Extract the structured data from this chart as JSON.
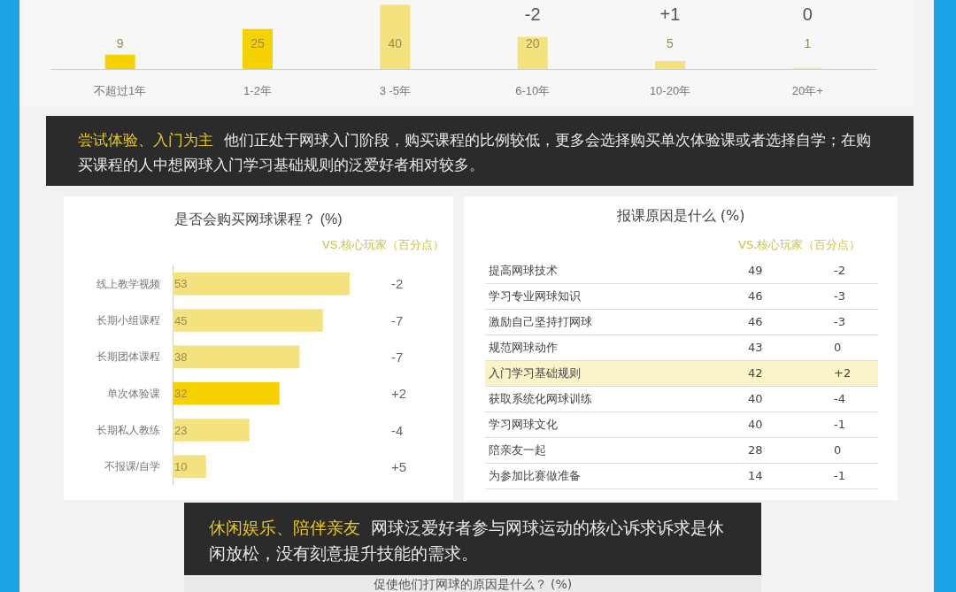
{
  "chart_data": [
    {
      "type": "bar",
      "categories": [
        "不超过1年",
        "1-2年",
        "3 -5年",
        "6-10年",
        "10-20年",
        "20年+"
      ],
      "values": [
        9,
        25,
        40,
        20,
        5,
        1
      ],
      "colors": [
        "#f6d300",
        "#f6d300",
        "#f3e27d",
        "#f3e27d",
        "#f3e27d",
        "#f6eeb8"
      ],
      "data_labels": true,
      "annotations": [
        "-2",
        "+1",
        "0"
      ]
    },
    {
      "type": "other",
      "title": "尝试体验、入门为主",
      "subtitle": "他们正处于网球入门阶段，购买课程的比例较低，更多会选择购买单次体验课或者选择自学；在购买课程的人中想网球入门学习基础规则的泛爱好者相对较多。"
    },
    {
      "type": "bar",
      "orientation": "horizontal",
      "title": "是否会购买网球课程？ (%)",
      "categories": [
        "线上教学视频",
        "长期小组课程",
        "长期团体课程",
        "单次体验课",
        "长期私人教练",
        "不报课/自学"
      ],
      "values": [
        53,
        45,
        38,
        32,
        23,
        10
      ],
      "colors": [
        "#f3e27d",
        "#f3e27d",
        "#f3e27d",
        "#f6d300",
        "#f3e27d",
        "#f3e27d"
      ],
      "data_labels": true,
      "annotations": [
        "VS.核心玩家（百分点）",
        "-2",
        "-7",
        "-7",
        "+2",
        "-4",
        "+5"
      ]
    },
    {
      "type": "other",
      "title": "报课原因是什么 (%)",
      "categories": [
        "提高网球技术",
        "学习专业网球知识",
        "激励自己坚持打网球",
        "规范网球动作",
        "入门学习基础规则",
        "获取系统化网球训练",
        "学习网球文化",
        "陪亲友一起",
        "为参加比赛做准备"
      ],
      "values": [
        49,
        46,
        46,
        43,
        42,
        40,
        40,
        28,
        14
      ],
      "colors": [
        null,
        null,
        null,
        null,
        "#fbf4c8",
        null,
        null,
        null,
        null
      ],
      "data_labels": true,
      "annotations": [
        "VS.核心玩家（百分点）",
        "-2",
        "-3",
        "-3",
        "0",
        "+2",
        "-4",
        "-1",
        "0",
        "-1"
      ]
    },
    {
      "type": "other",
      "title": "休闲娱乐、陪伴亲友",
      "subtitle": "网球泛爱好者参与网球运动的核心诉求诉求是休闲放松，没有刻意提升技能的需求。",
      "annotations": [
        "促使他们打网球的原因是什么？ (%)"
      ]
    }
  ]
}
